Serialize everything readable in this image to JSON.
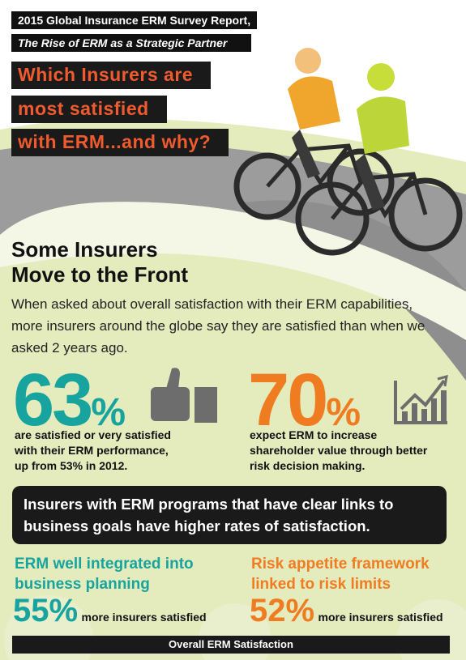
{
  "header": {
    "line1": "2015 Global Insurance ERM Survey Report,",
    "line2": "The Rise of ERM as a Strategic Partner"
  },
  "title": {
    "lines": [
      "Which Insurers are",
      "most satisfied",
      "with ERM...and why?"
    ]
  },
  "section": {
    "heading": [
      "Some Insurers",
      "Move to the Front"
    ],
    "intro": [
      "When asked about overall satisfaction with their ERM capabilities,",
      "more insurers around the globe say they are satisfied than when we",
      "asked 2 years ago."
    ]
  },
  "stats": [
    {
      "value": "63",
      "unit": "%",
      "text": [
        "are satisfied or very satisfied",
        "with their ERM performance,",
        "up from 53% in 2012."
      ]
    },
    {
      "value": "70",
      "unit": "%",
      "text": [
        "expect ERM to increase",
        "shareholder value through better",
        "risk decision making."
      ]
    }
  ],
  "callout": [
    "Insurers with ERM programs that have clear links to",
    "business goals have higher rates of satisfaction."
  ],
  "factors": [
    {
      "label": [
        "ERM well integrated into",
        "business planning"
      ],
      "value": "55",
      "unit": "%",
      "text": "more insurers satisfied"
    },
    {
      "label": [
        "Risk appetite framework",
        "linked to risk limits"
      ],
      "value": "52",
      "unit": "%",
      "text": "more insurers satisfied"
    }
  ],
  "footer": "Overall ERM Satisfaction"
}
